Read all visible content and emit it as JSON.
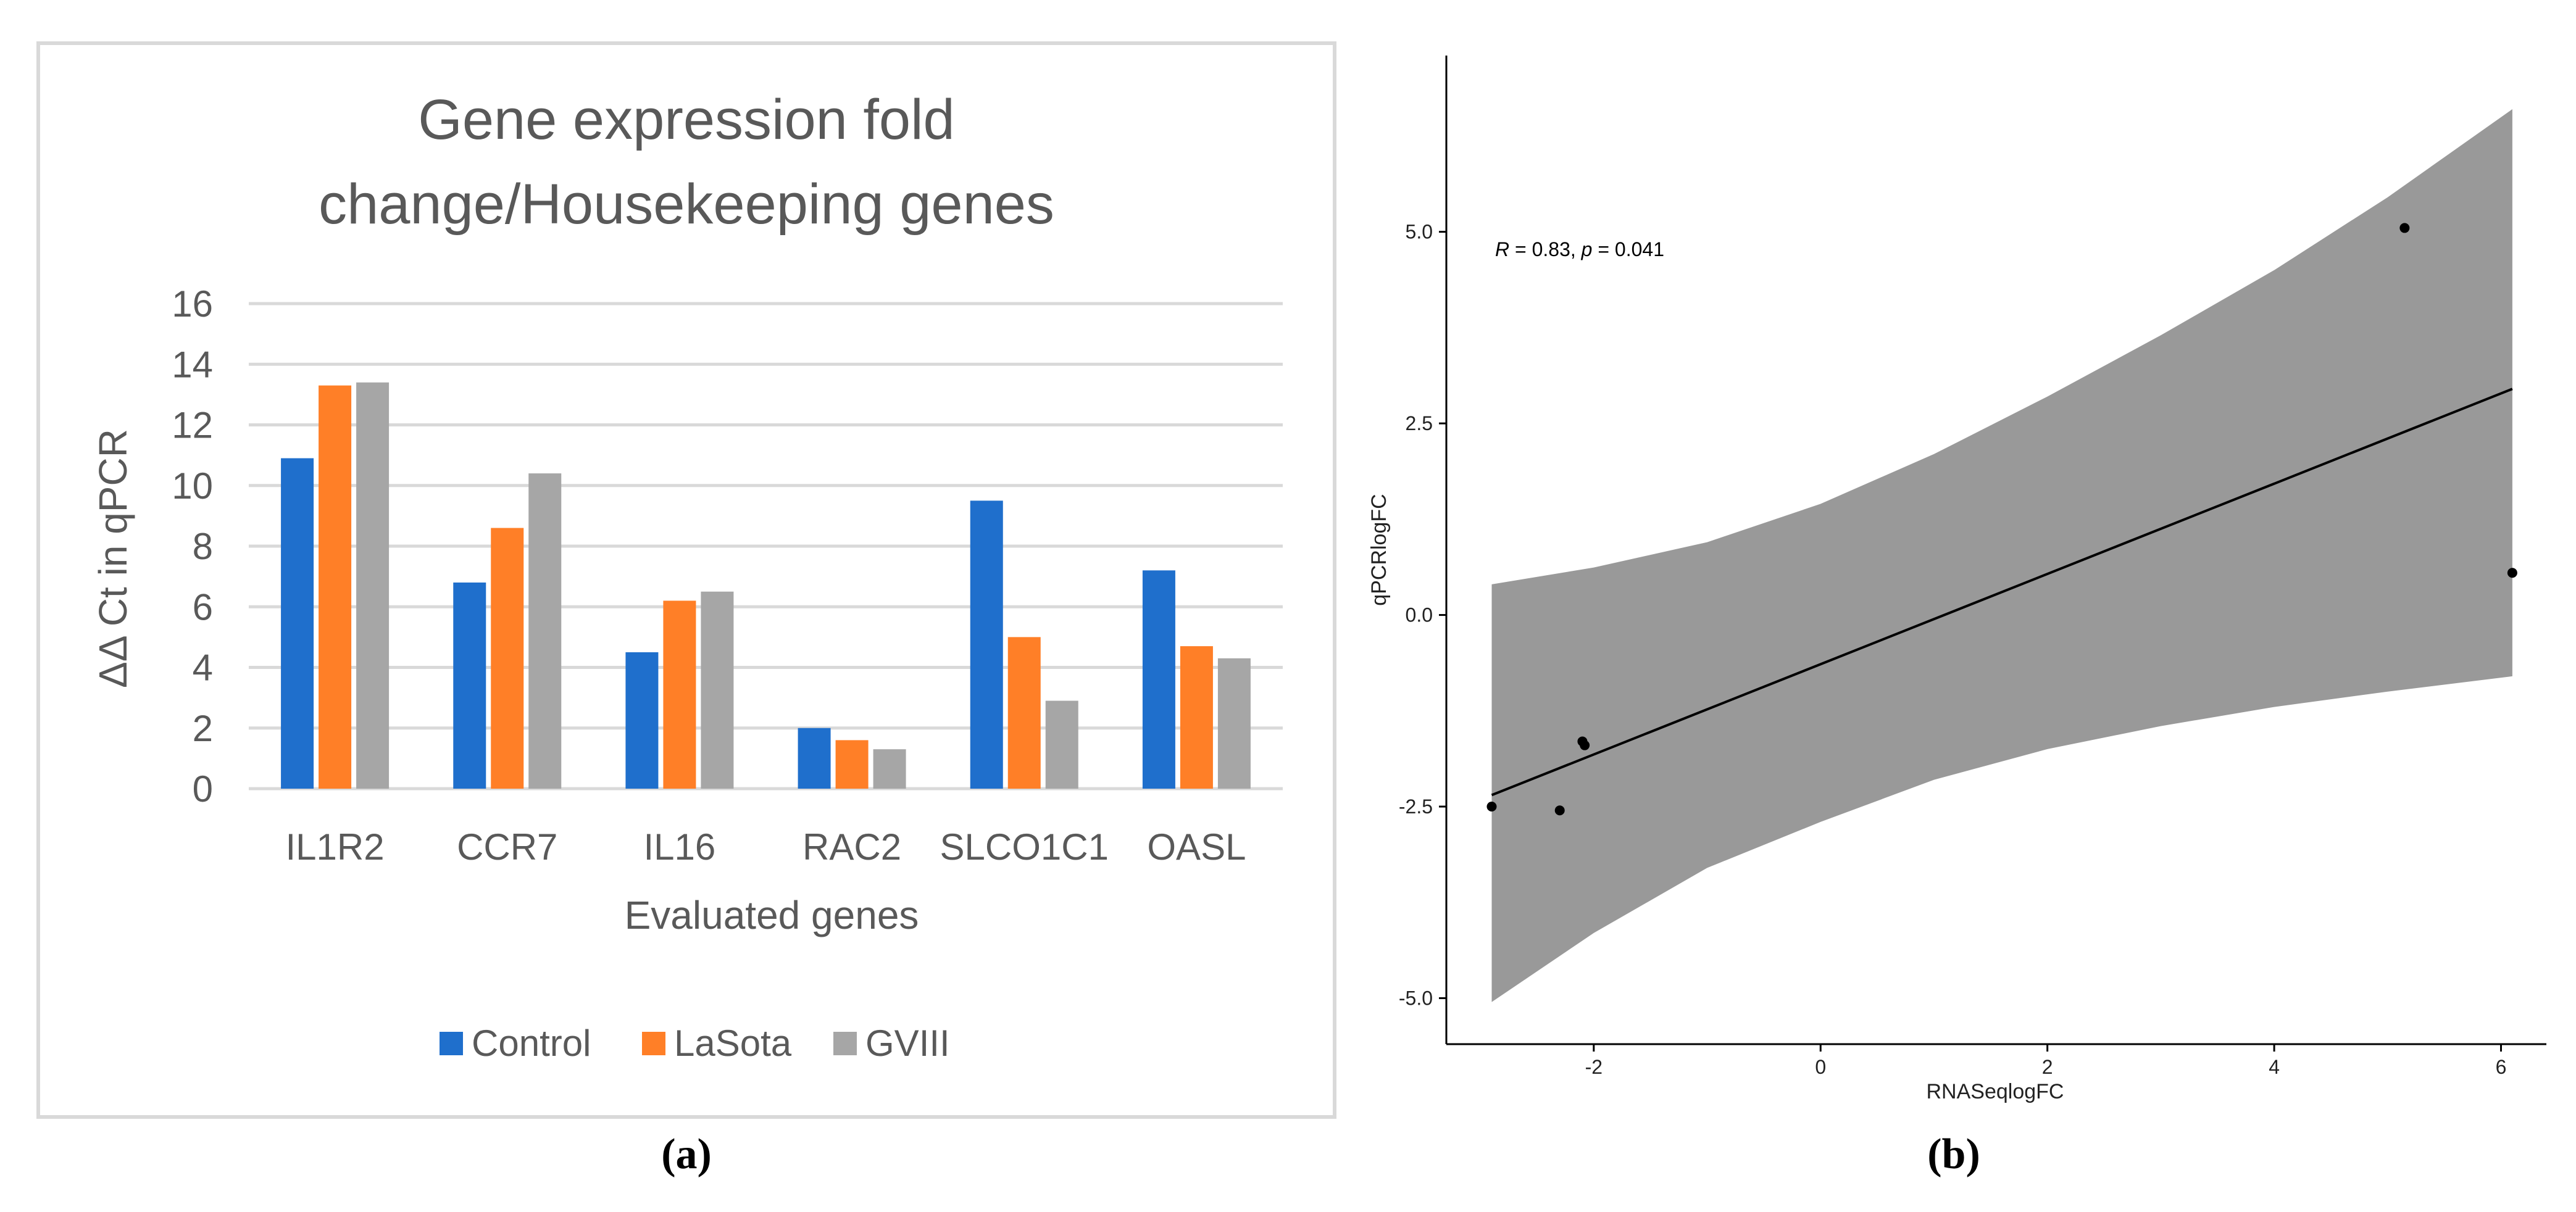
{
  "chart_data": [
    {
      "type": "bar",
      "panel_label": "(a)",
      "title_lines": [
        "Gene expression fold",
        "change/Housekeeping genes"
      ],
      "xlabel": "Evaluated genes",
      "ylabel": "ΔΔ Ct in qPCR",
      "ylim": [
        0,
        16
      ],
      "yticks": [
        0,
        2,
        4,
        6,
        8,
        10,
        12,
        14,
        16
      ],
      "grid": true,
      "legend_position": "bottom",
      "categories": [
        "IL1R2",
        "CCR7",
        "IL16",
        "RAC2",
        "SLCO1C1",
        "OASL"
      ],
      "series": [
        {
          "name": "Control",
          "color": "#1f6fcc",
          "values": [
            10.9,
            6.8,
            4.5,
            2.0,
            9.5,
            7.2
          ]
        },
        {
          "name": "LaSota",
          "color": "#ff7f27",
          "values": [
            13.3,
            8.6,
            6.2,
            1.6,
            5.0,
            4.7
          ]
        },
        {
          "name": "GVIII",
          "color": "#a6a6a6",
          "values": [
            13.4,
            10.4,
            6.5,
            1.3,
            2.9,
            4.3
          ]
        }
      ]
    },
    {
      "type": "scatter",
      "panel_label": "(b)",
      "xlabel": "RNASeqlogFC",
      "ylabel": "qPCRlogFC",
      "xlim": [
        -3.3,
        6.4
      ],
      "ylim": [
        -5.6,
        7.3
      ],
      "xticks": [
        -2,
        0,
        2,
        4,
        6
      ],
      "yticks": [
        -5.0,
        -2.5,
        0.0,
        2.5,
        5.0
      ],
      "ytick_labels": [
        "-5.0",
        "-2.5",
        "0.0",
        "2.5",
        "5.0"
      ],
      "annotation_r": "R",
      "annotation_mid": " = 0.83, ",
      "annotation_p": "p",
      "annotation_end": " = 0.041",
      "points": [
        {
          "x": -2.9,
          "y": -2.5
        },
        {
          "x": -2.3,
          "y": -2.55
        },
        {
          "x": -2.1,
          "y": -1.65
        },
        {
          "x": -2.08,
          "y": -1.7
        },
        {
          "x": 5.15,
          "y": 5.05
        },
        {
          "x": 6.1,
          "y": 0.55
        }
      ],
      "fit_line": {
        "x": [
          -2.9,
          6.1
        ],
        "y": [
          -2.35,
          2.95
        ]
      },
      "confidence_band": {
        "x": [
          -2.9,
          -2.0,
          -1.0,
          0.0,
          1.0,
          2.0,
          3.0,
          4.0,
          5.0,
          6.1
        ],
        "upper": [
          0.4,
          0.62,
          0.95,
          1.45,
          2.1,
          2.85,
          3.65,
          4.5,
          5.45,
          6.6
        ],
        "lower": [
          -5.05,
          -4.15,
          -3.3,
          -2.7,
          -2.15,
          -1.75,
          -1.45,
          -1.2,
          -1.0,
          -0.8
        ]
      },
      "band_color": "#999999",
      "point_color": "#000000"
    }
  ]
}
